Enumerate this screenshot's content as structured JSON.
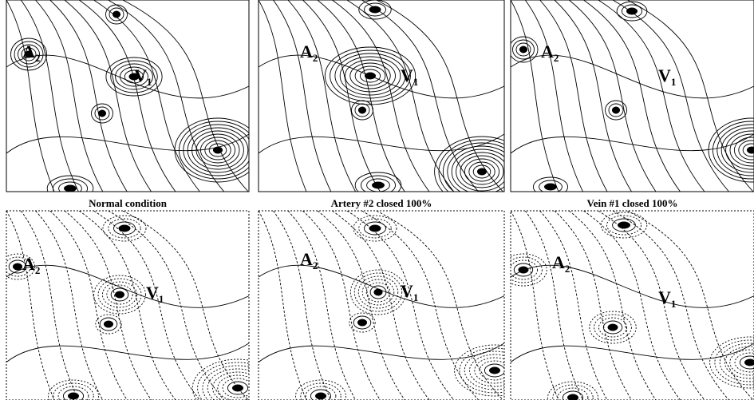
{
  "panels": [
    {
      "caption": "Normal condition",
      "labels": [
        {
          "letter": "A",
          "sub": "2"
        },
        {
          "letter": "V",
          "sub": "1"
        }
      ]
    },
    {
      "caption": "Artery #2 closed 100%",
      "labels": [
        {
          "letter": "A",
          "sub": "2"
        },
        {
          "letter": "V",
          "sub": "1"
        }
      ]
    },
    {
      "caption": "Vein #1 closed 100%",
      "labels": [
        {
          "letter": "A",
          "sub": "2"
        },
        {
          "letter": "V",
          "sub": "1"
        }
      ]
    },
    {
      "labels": [
        {
          "letter": "A",
          "sub": "2"
        },
        {
          "letter": "V",
          "sub": "1"
        }
      ]
    },
    {
      "labels": [
        {
          "letter": "A",
          "sub": "2"
        },
        {
          "letter": "V",
          "sub": "1"
        }
      ]
    },
    {
      "labels": [
        {
          "letter": "A",
          "sub": "2"
        },
        {
          "letter": "V",
          "sub": "1"
        }
      ]
    }
  ]
}
